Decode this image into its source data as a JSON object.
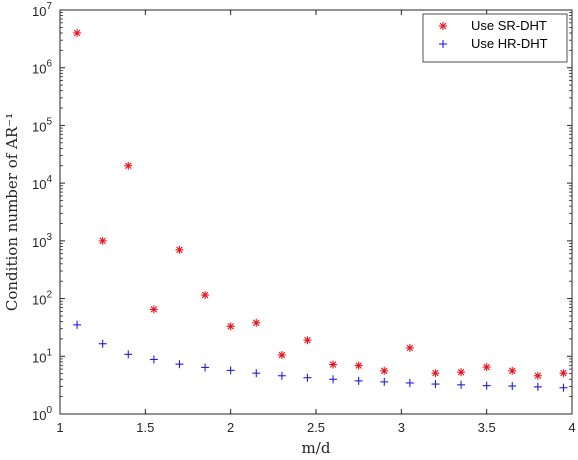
{
  "chart_data": {
    "type": "scatter",
    "xlabel": "m/d",
    "ylabel": "Condition number of AR⁻¹",
    "xlim": [
      1,
      4
    ],
    "ylim": [
      1,
      10000000
    ],
    "y_scale": "log",
    "x_ticks": [
      {
        "value": 1,
        "label": "1"
      },
      {
        "value": 1.5,
        "label": "1.5"
      },
      {
        "value": 2,
        "label": "2"
      },
      {
        "value": 2.5,
        "label": "2.5"
      },
      {
        "value": 3,
        "label": "3"
      },
      {
        "value": 3.5,
        "label": "3.5"
      },
      {
        "value": 4,
        "label": "4"
      }
    ],
    "y_ticks": [
      {
        "value": 1,
        "base": "10",
        "exp": "0"
      },
      {
        "value": 10,
        "base": "10",
        "exp": "1"
      },
      {
        "value": 100,
        "base": "10",
        "exp": "2"
      },
      {
        "value": 1000,
        "base": "10",
        "exp": "3"
      },
      {
        "value": 10000,
        "base": "10",
        "exp": "4"
      },
      {
        "value": 100000,
        "base": "10",
        "exp": "5"
      },
      {
        "value": 1000000,
        "base": "10",
        "exp": "6"
      },
      {
        "value": 10000000,
        "base": "10",
        "exp": "7"
      }
    ],
    "grid": false,
    "legend_position": "top-right",
    "x": [
      1.1,
      1.25,
      1.4,
      1.55,
      1.7,
      1.85,
      2.0,
      2.15,
      2.3,
      2.45,
      2.6,
      2.75,
      2.9,
      3.05,
      3.2,
      3.35,
      3.5,
      3.65,
      3.8,
      3.95
    ],
    "series": [
      {
        "name": "Use SR-DHT",
        "marker": "asterisk",
        "color": "#e8141e",
        "values": [
          4000000,
          1000,
          20000,
          65,
          700,
          115,
          33,
          38,
          10.5,
          19,
          7.2,
          6.9,
          5.6,
          14,
          5.1,
          5.3,
          6.5,
          5.6,
          4.6,
          5.1
        ]
      },
      {
        "name": "Use HR-DHT",
        "marker": "plus",
        "color": "#1e1ee0",
        "values": [
          35,
          16.5,
          10.8,
          8.8,
          7.3,
          6.4,
          5.7,
          5.1,
          4.6,
          4.25,
          4.0,
          3.75,
          3.6,
          3.45,
          3.3,
          3.2,
          3.1,
          3.05,
          2.95,
          2.85
        ]
      }
    ]
  }
}
